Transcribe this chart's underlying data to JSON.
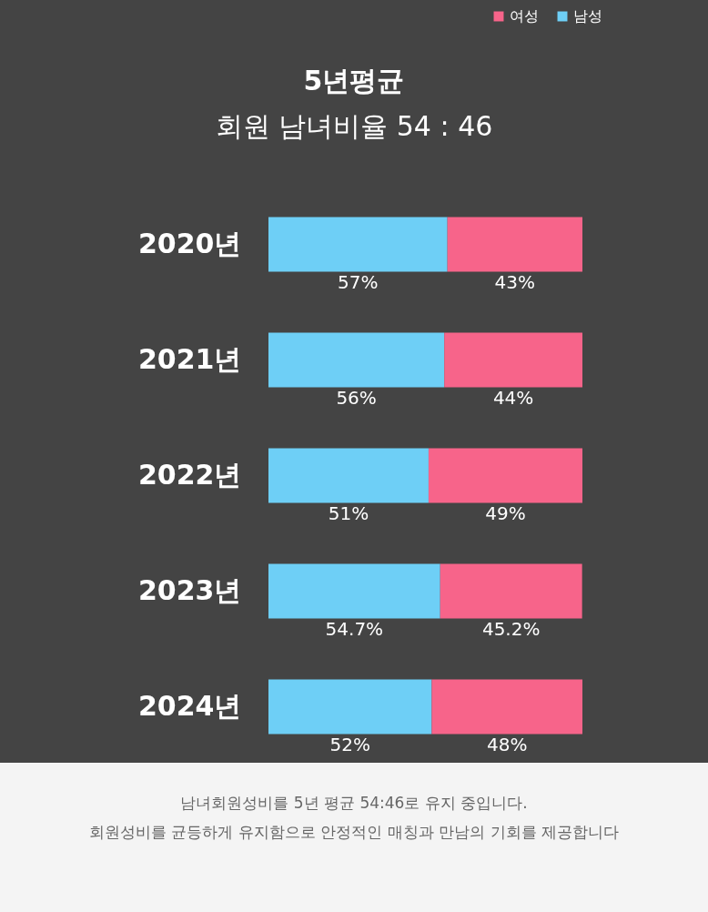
{
  "chart_data": {
    "type": "bar",
    "orientation": "horizontal",
    "stacked": true,
    "title": "5년평균",
    "subtitle": "회원 남녀비율 54 : 46",
    "categories": [
      "2020년",
      "2021년",
      "2022년",
      "2023년",
      "2024년"
    ],
    "series": [
      {
        "name": "남성",
        "color": "#6ecff6",
        "values": [
          57,
          56,
          51,
          54.7,
          52
        ],
        "value_labels": [
          "57%",
          "56%",
          "51%",
          "54.7%",
          "52%"
        ]
      },
      {
        "name": "여성",
        "color": "#f7648a",
        "values": [
          43,
          44,
          49,
          45.2,
          48
        ],
        "value_labels": [
          "43%",
          "44%",
          "49%",
          "45.2%",
          "48%"
        ]
      }
    ],
    "legend": "top right",
    "annotations": [
      "남녀회원성비를 5년 평균 54:46로 유지 중입니다.",
      "회원성비를 균등하게 유지함으로 안정적인 매칭과 만남의 기회를 제공합니다"
    ]
  }
}
